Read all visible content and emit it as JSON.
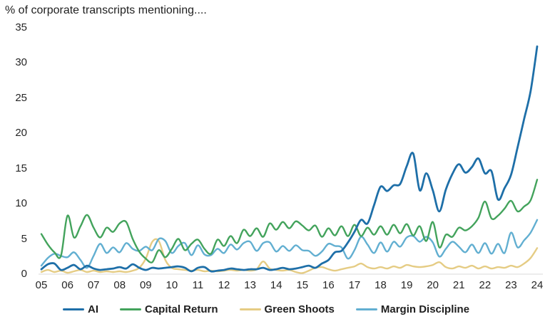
{
  "title": "% of corporate transcripts mentioning....",
  "chart_data": {
    "type": "line",
    "title": "% of corporate transcripts mentioning....",
    "xlabel": "",
    "ylabel": "",
    "xlim": [
      2005,
      2024
    ],
    "ylim": [
      0,
      35
    ],
    "y_ticks": [
      0,
      5,
      10,
      15,
      20,
      25,
      30,
      35
    ],
    "x_tick_years": [
      2005,
      2006,
      2007,
      2008,
      2009,
      2010,
      2011,
      2012,
      2013,
      2014,
      2015,
      2016,
      2017,
      2018,
      2019,
      2020,
      2021,
      2022,
      2023,
      2024
    ],
    "x_tick_labels": [
      "05",
      "06",
      "07",
      "08",
      "09",
      "10",
      "11",
      "12",
      "13",
      "14",
      "15",
      "16",
      "17",
      "18",
      "19",
      "20",
      "21",
      "22",
      "23",
      "24"
    ],
    "grid": "baseline-only",
    "baseline_color": "#d9d9d9",
    "legend_position": "bottom",
    "x": [
      2005,
      2005.25,
      2005.5,
      2005.75,
      2006,
      2006.25,
      2006.5,
      2006.75,
      2007,
      2007.25,
      2007.5,
      2007.75,
      2008,
      2008.25,
      2008.5,
      2008.75,
      2009,
      2009.25,
      2009.5,
      2009.75,
      2010,
      2010.25,
      2010.5,
      2010.75,
      2011,
      2011.25,
      2011.5,
      2011.75,
      2012,
      2012.25,
      2012.5,
      2012.75,
      2013,
      2013.25,
      2013.5,
      2013.75,
      2014,
      2014.25,
      2014.5,
      2014.75,
      2015,
      2015.25,
      2015.5,
      2015.75,
      2016,
      2016.25,
      2016.5,
      2016.75,
      2017,
      2017.25,
      2017.5,
      2017.75,
      2018,
      2018.25,
      2018.5,
      2018.75,
      2019,
      2019.25,
      2019.5,
      2019.75,
      2020,
      2020.25,
      2020.5,
      2020.75,
      2021,
      2021.25,
      2021.5,
      2021.75,
      2022,
      2022.25,
      2022.5,
      2022.75,
      2023,
      2023.25,
      2023.5,
      2023.75,
      2024
    ],
    "series": [
      {
        "name": "AI",
        "color": "#1e6fa8",
        "values": [
          0.7,
          1.4,
          1.5,
          0.6,
          0.9,
          1.3,
          0.7,
          1.2,
          0.8,
          0.6,
          0.7,
          0.8,
          1.0,
          0.8,
          1.4,
          0.9,
          0.6,
          0.9,
          0.8,
          0.9,
          1.0,
          1.1,
          0.9,
          0.4,
          0.9,
          1.0,
          0.4,
          0.5,
          0.6,
          0.8,
          0.7,
          0.6,
          0.7,
          0.7,
          0.9,
          0.6,
          0.7,
          0.9,
          0.7,
          0.8,
          1.0,
          1.2,
          0.9,
          1.5,
          2.0,
          3.1,
          3.3,
          4.5,
          6.0,
          7.7,
          7.2,
          9.8,
          12.4,
          11.8,
          12.6,
          12.8,
          15.3,
          17.1,
          11.9,
          14.3,
          11.9,
          8.9,
          12.0,
          14.2,
          15.6,
          14.4,
          15.2,
          16.4,
          14.3,
          14.6,
          10.6,
          12.2,
          14.1,
          18.0,
          22.0,
          26.0,
          32.3
        ]
      },
      {
        "name": "Capital Return",
        "color": "#43a35c",
        "values": [
          5.7,
          4.2,
          3.1,
          2.6,
          8.3,
          5.2,
          6.8,
          8.4,
          6.6,
          5.2,
          6.6,
          6.0,
          7.2,
          7.4,
          5.0,
          3.2,
          2.2,
          1.7,
          3.4,
          2.4,
          3.6,
          5.0,
          3.4,
          4.3,
          4.9,
          3.6,
          2.9,
          4.9,
          4.0,
          5.4,
          4.4,
          6.3,
          5.4,
          6.5,
          5.3,
          7.2,
          6.3,
          7.4,
          6.5,
          7.5,
          6.9,
          6.2,
          6.9,
          5.3,
          6.5,
          5.5,
          6.8,
          5.4,
          7.0,
          5.4,
          6.6,
          5.6,
          6.8,
          5.6,
          7.0,
          5.8,
          7.1,
          5.5,
          6.8,
          4.7,
          7.4,
          3.8,
          5.6,
          5.3,
          6.6,
          6.2,
          6.8,
          8.0,
          10.3,
          7.9,
          8.3,
          9.3,
          10.4,
          8.9,
          9.6,
          10.5,
          13.4
        ]
      },
      {
        "name": "Green Shoots",
        "color": "#e5cc84",
        "values": [
          0.3,
          0.6,
          0.3,
          0.5,
          0.2,
          0.4,
          0.6,
          0.3,
          0.5,
          0.3,
          0.4,
          0.3,
          0.4,
          0.3,
          0.5,
          0.9,
          2.2,
          4.6,
          4.7,
          2.0,
          0.9,
          0.7,
          0.6,
          0.5,
          0.6,
          0.4,
          0.5,
          0.4,
          0.5,
          0.6,
          0.5,
          0.6,
          0.5,
          0.7,
          1.8,
          0.8,
          0.6,
          0.5,
          0.6,
          0.3,
          0.15,
          0.5,
          0.9,
          1.0,
          0.7,
          0.5,
          0.7,
          0.9,
          1.1,
          1.5,
          1.0,
          0.8,
          1.0,
          0.8,
          1.1,
          0.9,
          1.3,
          1.1,
          1.0,
          1.1,
          1.3,
          1.7,
          1.0,
          0.8,
          1.1,
          0.9,
          1.2,
          0.8,
          1.1,
          0.8,
          1.0,
          0.9,
          1.2,
          1.0,
          1.5,
          2.3,
          3.7
        ]
      },
      {
        "name": "Margin Discipline",
        "color": "#62afd1",
        "values": [
          1.2,
          2.3,
          2.9,
          2.6,
          2.4,
          3.1,
          2.0,
          0.9,
          2.6,
          4.3,
          3.0,
          3.8,
          3.1,
          4.4,
          3.6,
          3.3,
          3.9,
          3.4,
          5.0,
          4.7,
          3.0,
          4.0,
          4.4,
          2.7,
          4.1,
          2.8,
          2.7,
          3.6,
          3.0,
          4.2,
          3.5,
          4.4,
          4.6,
          3.3,
          4.4,
          4.5,
          3.2,
          4.0,
          3.3,
          4.1,
          3.4,
          3.3,
          2.6,
          3.2,
          4.3,
          4.0,
          3.8,
          2.2,
          3.4,
          5.3,
          4.2,
          3.0,
          4.5,
          3.2,
          4.6,
          3.9,
          5.2,
          5.4,
          4.6,
          5.3,
          4.5,
          2.5,
          3.6,
          4.6,
          3.9,
          3.1,
          4.2,
          3.0,
          4.4,
          2.9,
          4.3,
          3.0,
          5.9,
          3.8,
          4.8,
          5.9,
          7.7
        ]
      }
    ]
  }
}
